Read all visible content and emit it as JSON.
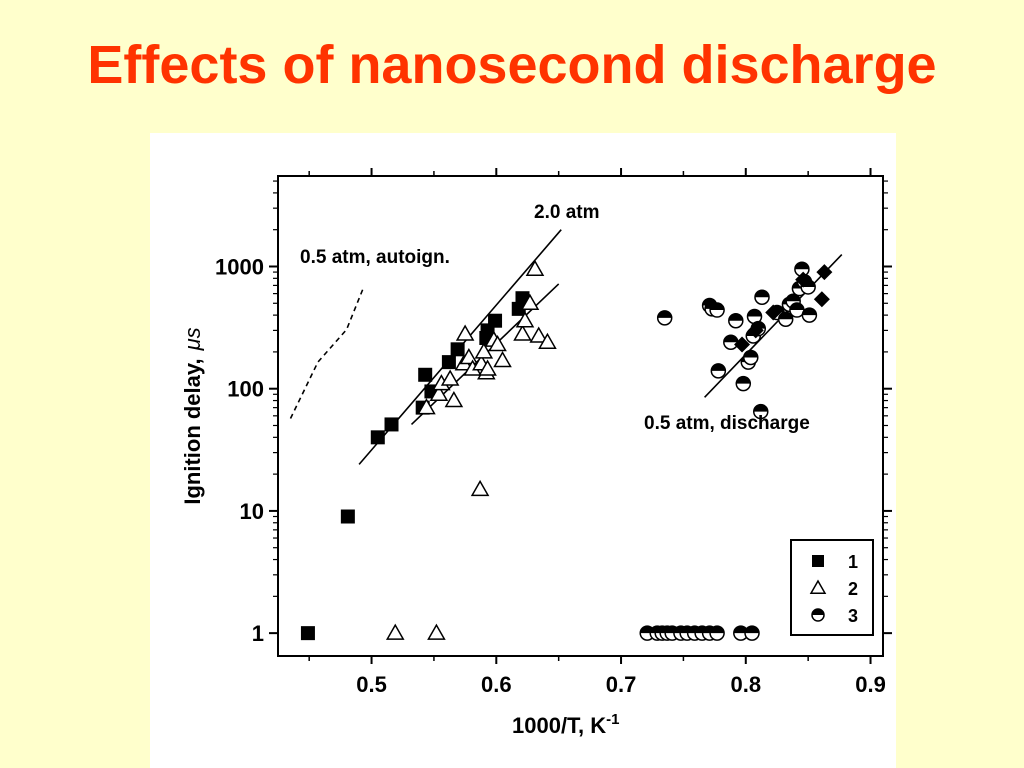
{
  "slide": {
    "title": "Effects of nanosecond discharge"
  },
  "chart_data": {
    "type": "scatter",
    "xlabel": "1000/T, K",
    "xlabel_sup": "-1",
    "ylabel": "Ignition delay,",
    "ylabel_unit": "μs",
    "xlim": [
      0.425,
      0.91
    ],
    "ylim": [
      0.65,
      5500
    ],
    "yscale": "log",
    "x_ticks": [
      "0.5",
      "0.6",
      "0.7",
      "0.8",
      "0.9"
    ],
    "x_tick_values": [
      0.5,
      0.6,
      0.7,
      0.8,
      0.9
    ],
    "y_ticks": [
      "1",
      "10",
      "100",
      "1000"
    ],
    "y_tick_values": [
      1,
      10,
      100,
      1000
    ],
    "grid": false,
    "legend_position": "bottom-right",
    "annotations": [
      "2.0 atm",
      "0.5 atm, autoign.",
      "0.5 atm, discharge"
    ],
    "series": [
      {
        "name": "1",
        "marker": "filled-square",
        "points": [
          [
            0.449,
            1
          ],
          [
            0.481,
            9
          ],
          [
            0.505,
            40
          ],
          [
            0.516,
            51
          ],
          [
            0.541,
            70
          ],
          [
            0.543,
            130
          ],
          [
            0.548,
            95
          ],
          [
            0.562,
            165
          ],
          [
            0.569,
            210
          ],
          [
            0.592,
            260
          ],
          [
            0.593,
            300
          ],
          [
            0.599,
            360
          ],
          [
            0.618,
            450
          ],
          [
            0.621,
            550
          ]
        ]
      },
      {
        "name": "2",
        "marker": "open-triangle",
        "points": [
          [
            0.519,
            1
          ],
          [
            0.552,
            1
          ],
          [
            0.587,
            15
          ],
          [
            0.544,
            70
          ],
          [
            0.554,
            90
          ],
          [
            0.556,
            110
          ],
          [
            0.563,
            120
          ],
          [
            0.566,
            80
          ],
          [
            0.574,
            160
          ],
          [
            0.575,
            280
          ],
          [
            0.578,
            180
          ],
          [
            0.581,
            145
          ],
          [
            0.588,
            160
          ],
          [
            0.59,
            200
          ],
          [
            0.592,
            135
          ],
          [
            0.593,
            145
          ],
          [
            0.598,
            250
          ],
          [
            0.601,
            230
          ],
          [
            0.605,
            170
          ],
          [
            0.621,
            280
          ],
          [
            0.623,
            360
          ],
          [
            0.627,
            500
          ],
          [
            0.631,
            950
          ],
          [
            0.634,
            270
          ],
          [
            0.641,
            240
          ]
        ]
      },
      {
        "name": "3",
        "marker": "half-filled-circle",
        "points": [
          [
            0.721,
            1
          ],
          [
            0.729,
            1
          ],
          [
            0.733,
            1
          ],
          [
            0.737,
            1
          ],
          [
            0.741,
            1
          ],
          [
            0.748,
            1
          ],
          [
            0.753,
            1
          ],
          [
            0.759,
            1
          ],
          [
            0.765,
            1
          ],
          [
            0.771,
            1
          ],
          [
            0.777,
            1
          ],
          [
            0.796,
            1
          ],
          [
            0.805,
            1
          ],
          [
            0.735,
            380
          ],
          [
            0.771,
            480
          ],
          [
            0.773,
            450
          ],
          [
            0.777,
            440
          ],
          [
            0.778,
            140
          ],
          [
            0.788,
            240
          ],
          [
            0.792,
            360
          ],
          [
            0.798,
            110
          ],
          [
            0.802,
            165
          ],
          [
            0.804,
            180
          ],
          [
            0.806,
            270
          ],
          [
            0.807,
            390
          ],
          [
            0.81,
            310
          ],
          [
            0.812,
            65
          ],
          [
            0.813,
            560
          ],
          [
            0.825,
            420
          ],
          [
            0.832,
            370
          ],
          [
            0.835,
            490
          ],
          [
            0.838,
            520
          ],
          [
            0.841,
            440
          ],
          [
            0.843,
            660
          ],
          [
            0.845,
            950
          ],
          [
            0.847,
            750
          ],
          [
            0.85,
            680
          ],
          [
            0.851,
            400
          ]
        ]
      },
      {
        "name": "",
        "marker": "filled-diamond",
        "points": [
          [
            0.797,
            230
          ],
          [
            0.808,
            300
          ],
          [
            0.822,
            420
          ],
          [
            0.846,
            780
          ],
          [
            0.861,
            540
          ],
          [
            0.863,
            900
          ]
        ]
      }
    ],
    "lines": [
      {
        "style": "solid",
        "from": [
          0.49,
          24
        ],
        "to": [
          0.652,
          2000
        ]
      },
      {
        "style": "solid",
        "from": [
          0.532,
          51
        ],
        "to": [
          0.65,
          720
        ]
      },
      {
        "style": "solid",
        "from": [
          0.767,
          85
        ],
        "to": [
          0.877,
          1250
        ]
      },
      {
        "style": "dashed",
        "from": [
          0.435,
          57
        ],
        "to": [
          0.48,
          305
        ],
        "via": [
          [
            0.457,
            165
          ]
        ],
        "to2": [
          0.493,
          650
        ]
      }
    ]
  }
}
